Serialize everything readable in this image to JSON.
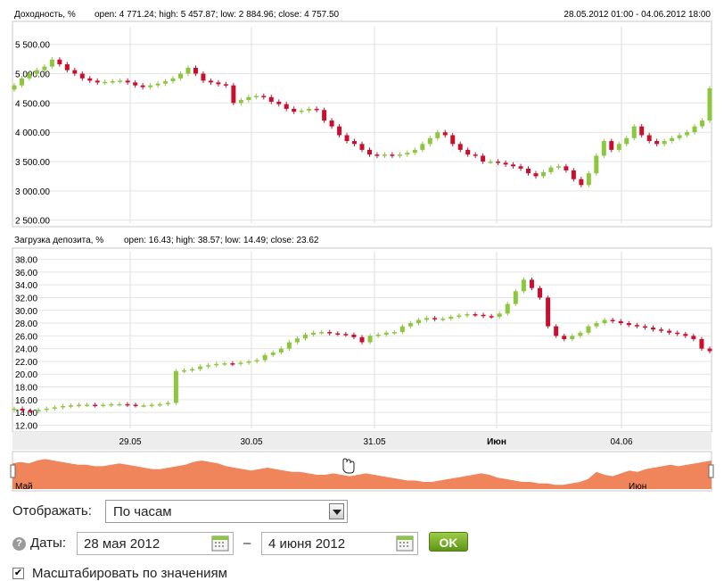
{
  "chart_data": [
    {
      "type": "candlestick",
      "title": "Доходность, %",
      "ohlc_summary": "open: 4 771.24; high: 5 457.87; low: 2 884.96; close: 4 757.50",
      "range_label": "28.05.2012 01:00 - 04.06.2012 18:00",
      "y_ticks": [
        "5 500.00",
        "5 000.00",
        "4 500.00",
        "4 000.00",
        "3 500.00",
        "3 000.00",
        "2 500.00"
      ],
      "ylim": [
        2450,
        5800
      ],
      "series_close": [
        4800,
        4920,
        5000,
        5060,
        5120,
        5240,
        5160,
        5060,
        5000,
        4920,
        4880,
        4850,
        4860,
        4870,
        4880,
        4850,
        4800,
        4770,
        4800,
        4830,
        4870,
        4920,
        5000,
        5100,
        5000,
        4880,
        4850,
        4820,
        4800,
        4500,
        4550,
        4600,
        4620,
        4600,
        4520,
        4480,
        4400,
        4350,
        4370,
        4400,
        4380,
        4200,
        4100,
        3950,
        3850,
        3800,
        3700,
        3620,
        3600,
        3620,
        3600,
        3620,
        3650,
        3700,
        3800,
        3900,
        4000,
        3950,
        3800,
        3700,
        3620,
        3600,
        3500,
        3500,
        3480,
        3450,
        3420,
        3380,
        3300,
        3250,
        3320,
        3400,
        3420,
        3350,
        3200,
        3100,
        3300,
        3600,
        3850,
        3700,
        3800,
        3900,
        4100,
        3950,
        3850,
        3800,
        3850,
        3900,
        3950,
        4000,
        4100,
        4200,
        4750
      ],
      "x_ticks": [
        "29.05",
        "30.05",
        "31.05",
        "Июн",
        "04.06"
      ]
    },
    {
      "type": "candlestick",
      "title": "Загрузка депозита, %",
      "ohlc_summary": "open: 16.43; high: 38.57; low: 14.49; close: 23.62",
      "y_ticks": [
        "38.00",
        "36.00",
        "34.00",
        "32.00",
        "30.00",
        "28.00",
        "26.00",
        "24.00",
        "22.00",
        "20.00",
        "18.00",
        "16.00",
        "14.00",
        "12.00"
      ],
      "ylim": [
        11.5,
        39.2
      ],
      "series_close": [
        14.6,
        14.3,
        14.2,
        14.4,
        14.6,
        14.8,
        15.0,
        15.1,
        15.2,
        15.2,
        15.1,
        15.2,
        15.3,
        15.3,
        15.2,
        15.1,
        15.1,
        15.2,
        15.3,
        15.5,
        20.5,
        20.6,
        20.8,
        21.2,
        21.4,
        21.6,
        21.7,
        21.6,
        21.8,
        22.0,
        22.2,
        23.0,
        23.4,
        24.0,
        25.0,
        25.6,
        26.2,
        26.5,
        26.6,
        26.4,
        26.3,
        26.2,
        25.8,
        25.0,
        26.0,
        26.2,
        26.5,
        26.6,
        27.5,
        28.0,
        28.5,
        28.8,
        28.6,
        28.7,
        29.0,
        29.2,
        29.4,
        29.3,
        29.1,
        29.0,
        29.5,
        31.0,
        33.0,
        34.8,
        33.5,
        32.0,
        27.5,
        26.0,
        25.5,
        26.0,
        26.5,
        27.5,
        28.0,
        28.5,
        28.3,
        28.0,
        27.7,
        27.5,
        27.3,
        27.0,
        26.8,
        26.5,
        26.3,
        26.0,
        25.5,
        24.0,
        23.6
      ],
      "x_ticks": [
        "29.05",
        "30.05",
        "31.05",
        "Июн",
        "04.06"
      ]
    }
  ],
  "navigator": {
    "label_left": "Май",
    "label_right": "Июн",
    "values": [
      18,
      19,
      18,
      20,
      21,
      20,
      19,
      18,
      17,
      17,
      16,
      16,
      17,
      18,
      17,
      16,
      15,
      14,
      14,
      15,
      16,
      17,
      19,
      20,
      19,
      18,
      16,
      15,
      14,
      13,
      14,
      15,
      14,
      13,
      12,
      12,
      11,
      10,
      10,
      11,
      10,
      9,
      10,
      11,
      10,
      9,
      8,
      7,
      6,
      6,
      5,
      5,
      6,
      7,
      8,
      9,
      10,
      11,
      10,
      8,
      7,
      6,
      5,
      5,
      4,
      4,
      3,
      3,
      4,
      5,
      7,
      12,
      10,
      9,
      11,
      13,
      12,
      14,
      15,
      16,
      17,
      16,
      17,
      18,
      19,
      20
    ]
  },
  "controls": {
    "display_label": "Отображать:",
    "display_value": "По часам",
    "dates_label": "Даты:",
    "date_from": "28 мая 2012",
    "date_sep": "–",
    "date_to": "4 июня 2012",
    "ok_label": "OK",
    "scale_checkbox_label": "Масштабировать по значениям",
    "scale_checked": true
  },
  "colors": {
    "up": "#8dc63f",
    "down": "#c8102e",
    "navigator_fill": "#f0845a",
    "grid": "#dddddd",
    "axis_band": "#ededed"
  }
}
